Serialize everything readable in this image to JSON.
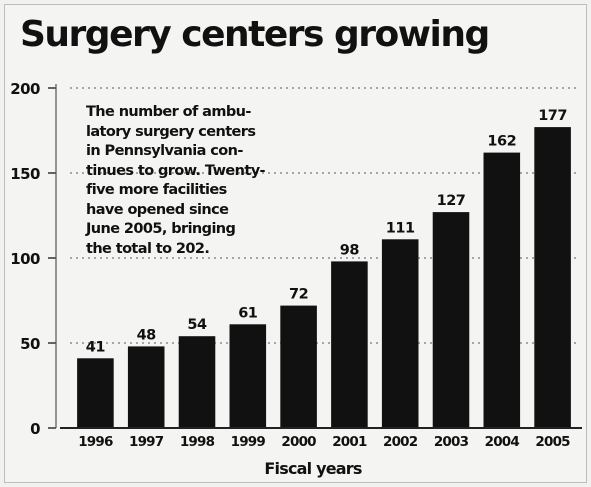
{
  "chart_data": {
    "type": "bar",
    "title": "Surgery centers growing",
    "annotation": "The number of ambu-latory surgery centers in Pennsylvania con-tinues to grow. Twenty-five more facilities have opened since June 2005, bringing the total to 202.",
    "annotation_lines": [
      "The number of ambu-",
      "latory surgery centers",
      "in Pennsylvania con-",
      "tinues to grow. Twenty-",
      "five more facilities",
      "have opened since",
      "June 2005, bringing",
      "the total to 202."
    ],
    "categories": [
      "1996",
      "1997",
      "1998",
      "1999",
      "2000",
      "2001",
      "2002",
      "2003",
      "2004",
      "2005"
    ],
    "values": [
      41,
      48,
      54,
      61,
      72,
      98,
      111,
      127,
      162,
      177
    ],
    "xlabel": "Fiscal years",
    "ylabel": "",
    "ylim": [
      0,
      200
    ],
    "yticks": [
      0,
      50,
      100,
      150,
      200
    ],
    "grid": true,
    "bar_color": "#111111"
  }
}
